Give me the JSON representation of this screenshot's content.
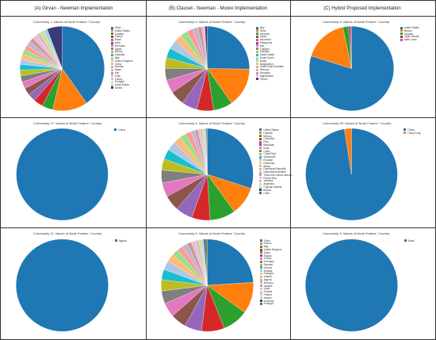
{
  "columns": [
    "(A) Girvan - Newman Implementation",
    "(B) Clauset - Newman - Moore Implementation",
    "(C) Hybrid Proposed Implementation"
  ],
  "chart_data": [
    {
      "type": "pie",
      "title": "Community 1: Values of Node Feature `Country`",
      "categories": [
        "Other",
        "United States",
        "Canada",
        "France",
        "Brazil",
        "India",
        "Germany",
        "Japan",
        "Mexico",
        "Australia",
        "Italy",
        "United Kingdom",
        "China",
        "Sweden",
        "Spain",
        "Iran",
        "Chile",
        "Turkey",
        "Portugal",
        "Saudi Arabia",
        "Serbia"
      ],
      "values": [
        40.2,
        13.4,
        4.2,
        3.6,
        3.0,
        2.8,
        2.6,
        2.4,
        2.2,
        2.2,
        2.0,
        2.0,
        1.9,
        1.8,
        1.8,
        1.7,
        1.7,
        1.6,
        1.6,
        1.5,
        5.8
      ],
      "labels": [
        "",
        "",
        "",
        "",
        "",
        "",
        "",
        "",
        "",
        "",
        "",
        "",
        "",
        "",
        "",
        "",
        "",
        "",
        "",
        "",
        ""
      ],
      "colors": [
        "#1f77b4",
        "#ff7f0e",
        "#2ca02c",
        "#d62728",
        "#9467bd",
        "#8c564b",
        "#e377c2",
        "#7f7f7f",
        "#bcbd22",
        "#17becf",
        "#aec7e8",
        "#ffbb78",
        "#98df8a",
        "#ff9896",
        "#c5b0d5",
        "#c49c94",
        "#f7b6d2",
        "#c7c7c7",
        "#dbdb8d",
        "#9edae5",
        "#393b79"
      ],
      "legend": [
        "Other",
        "United States",
        "Canada",
        "France",
        "Brazil",
        "India",
        "Germany",
        "Japan",
        "Mexico",
        "Australia",
        "Italy",
        "United Kingdom",
        "China",
        "Sweden",
        "Spain",
        "Iran",
        "Chile",
        "Turkey",
        "Portugal",
        "Saudi Arabia",
        "Serbia"
      ]
    },
    {
      "type": "pie",
      "title": "Community 2: Values of Node Feature `Country`",
      "categories": [
        "Italy",
        "Other",
        "Lebanon",
        "Japan",
        "Indonesia",
        "Philippines",
        "Iran",
        "Thailand",
        "Pakistan",
        "Saudi Arabia",
        "South Korea",
        "Nepal",
        "Bangladesh",
        "United Arab Emirates",
        "Vietnam",
        "Mongolia",
        "Afghanistan",
        "Yemen"
      ],
      "values": [
        25.5,
        15.2,
        7.4,
        6.5,
        6.0,
        5.6,
        5.1,
        4.6,
        4.2,
        3.8,
        3.4,
        3.0,
        2.7,
        2.4,
        2.0,
        1.6,
        1.2,
        0.9
      ],
      "labels": [
        "",
        "",
        "",
        "",
        "",
        "",
        "",
        "",
        "",
        "",
        "",
        "",
        "",
        "",
        "",
        "",
        "",
        ""
      ],
      "colors": [
        "#1f77b4",
        "#ff7f0e",
        "#2ca02c",
        "#d62728",
        "#9467bd",
        "#8c564b",
        "#e377c2",
        "#7f7f7f",
        "#bcbd22",
        "#17becf",
        "#aec7e8",
        "#ffbb78",
        "#98df8a",
        "#ff9896",
        "#c5b0d5",
        "#c49c94",
        "#f7b6d2",
        "#393b79"
      ],
      "legend": [
        "Italy",
        "Other",
        "Lebanon",
        "Japan",
        "Indonesia",
        "Philippines",
        "Iran",
        "Thailand",
        "Pakistan",
        "Saudi Arabia",
        "South Korea",
        "Nepal",
        "Bangladesh",
        "United Arab Emirates",
        "Vietnam",
        "Mongolia",
        "Afghanistan",
        "Yemen"
      ]
    },
    {
      "type": "pie",
      "title": "Community 3: Values of Node Feature `Country`",
      "categories": [
        "United States",
        "Mexico",
        "Canada",
        "Virgin Islands",
        "Saint Lucia"
      ],
      "values": [
        79.8,
        16.9,
        2.1,
        0.7,
        0.5
      ],
      "labels": [
        "",
        "",
        "",
        "",
        ""
      ],
      "colors": [
        "#1f77b4",
        "#ff7f0e",
        "#2ca02c",
        "#d62728",
        "#9467bd"
      ],
      "legend": [
        "United States",
        "Mexico",
        "Canada",
        "Virgin Islands",
        "Saint Lucia"
      ]
    },
    {
      "type": "pie",
      "title": "Community 17: Values of Node Feature `Country`",
      "categories": [
        "China"
      ],
      "values": [
        100
      ],
      "labels": [
        ""
      ],
      "colors": [
        "#1f77b4"
      ],
      "legend": [
        "China"
      ]
    },
    {
      "type": "pie",
      "title": "Community 4: Values of Node Feature `Country`",
      "categories": [
        "United States",
        "Canada",
        "Mexico",
        "Colombia",
        "Peru",
        "Bahamas",
        "India",
        "Cuba",
        "Costa Rica",
        "Venezuela",
        "Ecuador",
        "Honduras",
        "Belize",
        "Dominican Republic",
        "Netherlands Antilles",
        "Turks and Caicos Islands",
        "Puerto Rico",
        "Jamaica",
        "Argentina",
        "Cayman Islands",
        "Bolivia",
        "Chile"
      ],
      "values": [
        30.0,
        10.0,
        9.0,
        6.5,
        6.0,
        5.5,
        5.0,
        4.5,
        4.0,
        3.5,
        3.2,
        2.8,
        2.3,
        1.9,
        1.4,
        1.1,
        0.9,
        0.8,
        0.6,
        0.5,
        0.3,
        0.2
      ],
      "labels": [
        "",
        "",
        "",
        "",
        "",
        "",
        "",
        "",
        "",
        "",
        "",
        "",
        "",
        "",
        "",
        "",
        "",
        "",
        "",
        "",
        "",
        ""
      ],
      "colors": [
        "#1f77b4",
        "#ff7f0e",
        "#2ca02c",
        "#d62728",
        "#9467bd",
        "#8c564b",
        "#e377c2",
        "#7f7f7f",
        "#bcbd22",
        "#17becf",
        "#aec7e8",
        "#ffbb78",
        "#98df8a",
        "#ff9896",
        "#c5b0d5",
        "#c49c94",
        "#f7b6d2",
        "#c7c7c7",
        "#dbdb8d",
        "#9edae5",
        "#393b79",
        "#637939"
      ],
      "legend": [
        "United States",
        "Canada",
        "Mexico",
        "Colombia",
        "Peru",
        "Bahamas",
        "India",
        "Cuba",
        "Costa Rica",
        "Venezuela",
        "Ecuador",
        "Honduras",
        "Belize",
        "Dominican Republic",
        "Netherlands Antilles",
        "Turks and Caicos Islands",
        "Puerto Rico",
        "Jamaica",
        "Argentina",
        "Cayman Islands",
        "Bolivia",
        "Chile"
      ]
    },
    {
      "type": "pie",
      "title": "Community 25: Values of Node Feature `Country`",
      "categories": [
        "China",
        "Hong Kong"
      ],
      "values": [
        97.5,
        2.5
      ],
      "labels": [
        "",
        ""
      ],
      "colors": [
        "#1f77b4",
        "#ff7f0e"
      ],
      "legend": [
        "China",
        "Hong Kong"
      ]
    },
    {
      "type": "pie",
      "title": "Community 11: Values of Node Feature `Country`",
      "categories": [
        "Algeria"
      ],
      "values": [
        100
      ],
      "labels": [
        ""
      ],
      "colors": [
        "#1f77b4"
      ],
      "legend": [
        "Algeria"
      ]
    },
    {
      "type": "pie",
      "title": "Community 5: Values of Node Feature `Country`",
      "categories": [
        "Other",
        "France",
        "Italy",
        "United Kingdom",
        "Spain",
        "Russia",
        "Turkey",
        "Germany",
        "Sweden",
        "Greece",
        "Norway",
        "Portugal",
        "Austria",
        "Algeria",
        "Morocco",
        "Ukraine",
        "Libya",
        "Finland",
        "Poland",
        "Ireland",
        "Denmark",
        "Portugal"
      ],
      "values": [
        24.0,
        11.0,
        9.0,
        8.0,
        6.0,
        5.5,
        5.0,
        4.5,
        4.0,
        3.6,
        3.2,
        2.8,
        2.4,
        2.0,
        1.8,
        1.6,
        1.4,
        1.2,
        1.0,
        0.8,
        0.6,
        0.6
      ],
      "labels": [
        "",
        "",
        "",
        "",
        "",
        "",
        "",
        "",
        "",
        "",
        "",
        "",
        "",
        "",
        "",
        "",
        "",
        "",
        "",
        "",
        "",
        ""
      ],
      "colors": [
        "#1f77b4",
        "#ff7f0e",
        "#2ca02c",
        "#d62728",
        "#9467bd",
        "#8c564b",
        "#e377c2",
        "#7f7f7f",
        "#bcbd22",
        "#17becf",
        "#aec7e8",
        "#ffbb78",
        "#98df8a",
        "#ff9896",
        "#c5b0d5",
        "#c49c94",
        "#f7b6d2",
        "#c7c7c7",
        "#dbdb8d",
        "#9edae5",
        "#393b79",
        "#637939"
      ],
      "legend": [
        "Other",
        "France",
        "Italy",
        "United Kingdom",
        "Spain",
        "Russia",
        "Turkey",
        "Germany",
        "Sweden",
        "Greece",
        "Norway",
        "Portugal",
        "Austria",
        "Algeria",
        "Morocco",
        "Ukraine",
        "Libya",
        "Finland",
        "Poland",
        "Ireland",
        "Denmark",
        "Portugal"
      ]
    },
    {
      "type": "pie",
      "title": "Community 3: Values of Node Feature `Country`",
      "categories": [
        "Brazil"
      ],
      "values": [
        100
      ],
      "labels": [
        ""
      ],
      "colors": [
        "#1f77b4"
      ],
      "legend": [
        "Brazil"
      ]
    }
  ]
}
